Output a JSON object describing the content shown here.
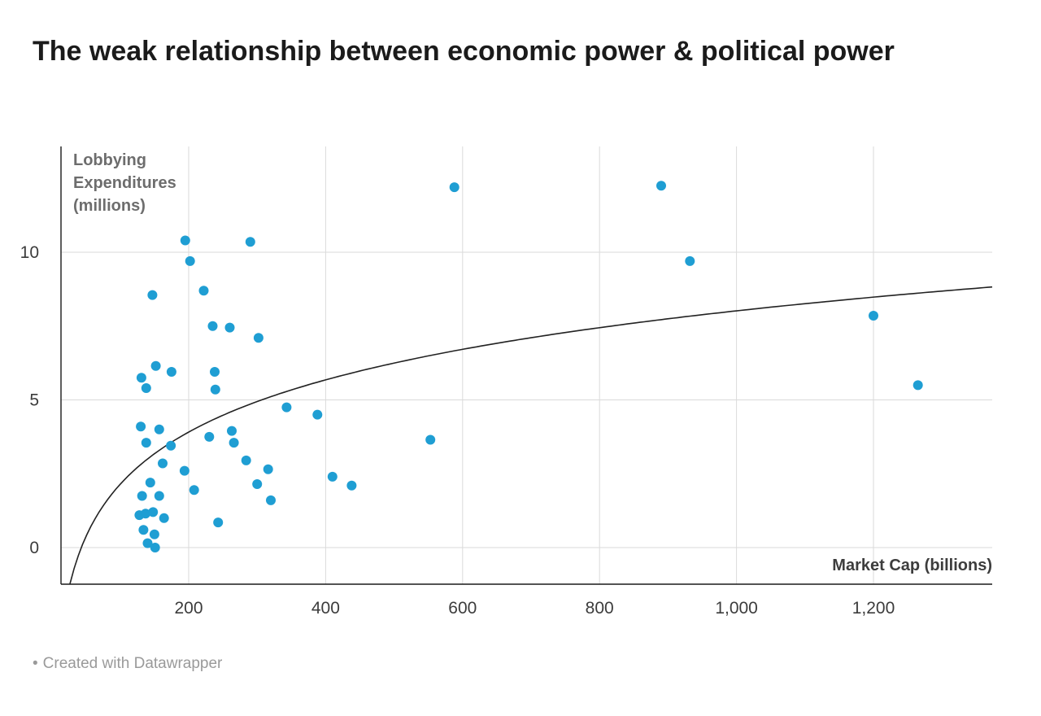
{
  "page": {
    "title": "The weak relationship between economic power & political power",
    "footer_bullet": "•",
    "footer_credit": "Created with Datawrapper"
  },
  "chart_data": {
    "type": "scatter",
    "title": "The weak relationship between economic power & political power",
    "xlabel": "Market Cap (billions)",
    "ylabel": "Lobbying Expenditures (millions)",
    "ylabel_lines": [
      "Lobbying",
      "Expenditures",
      "(millions)"
    ],
    "grid": true,
    "point_color": "#1f9ed3",
    "x_ticks": [
      {
        "value": 200,
        "label": "200"
      },
      {
        "value": 400,
        "label": "400"
      },
      {
        "value": 600,
        "label": "600"
      },
      {
        "value": 800,
        "label": "800"
      },
      {
        "value": 1000,
        "label": "1,000"
      },
      {
        "value": 1200,
        "label": "1,200"
      }
    ],
    "y_ticks": [
      {
        "value": 0,
        "label": "0"
      },
      {
        "value": 5,
        "label": "5"
      },
      {
        "value": 10,
        "label": "10"
      }
    ],
    "xlim": [
      13,
      1375
    ],
    "ylim": [
      -1.24,
      13.6
    ],
    "trend_line": {
      "type": "logarithmic",
      "equation": "y = 2.55*ln(x) - 9.6",
      "a": 2.55,
      "b": -9.6,
      "color": "#222222"
    },
    "points": [
      [
        195,
        10.4
      ],
      [
        202,
        9.7
      ],
      [
        290,
        10.35
      ],
      [
        588,
        12.2
      ],
      [
        890,
        12.25
      ],
      [
        932,
        9.7
      ],
      [
        147,
        8.55
      ],
      [
        222,
        8.7
      ],
      [
        1200,
        7.85
      ],
      [
        235,
        7.5
      ],
      [
        260,
        7.45
      ],
      [
        302,
        7.1
      ],
      [
        1265,
        5.5
      ],
      [
        152,
        6.15
      ],
      [
        131,
        5.75
      ],
      [
        175,
        5.95
      ],
      [
        238,
        5.95
      ],
      [
        138,
        5.4
      ],
      [
        239,
        5.35
      ],
      [
        343,
        4.75
      ],
      [
        388,
        4.5
      ],
      [
        130,
        4.1
      ],
      [
        157,
        4.0
      ],
      [
        263,
        3.95
      ],
      [
        230,
        3.75
      ],
      [
        266,
        3.55
      ],
      [
        138,
        3.55
      ],
      [
        553,
        3.65
      ],
      [
        174,
        3.45
      ],
      [
        284,
        2.95
      ],
      [
        162,
        2.85
      ],
      [
        316,
        2.65
      ],
      [
        194,
        2.6
      ],
      [
        410,
        2.4
      ],
      [
        144,
        2.2
      ],
      [
        300,
        2.15
      ],
      [
        438,
        2.1
      ],
      [
        208,
        1.95
      ],
      [
        132,
        1.75
      ],
      [
        157,
        1.75
      ],
      [
        320,
        1.6
      ],
      [
        128,
        1.1
      ],
      [
        137,
        1.15
      ],
      [
        148,
        1.2
      ],
      [
        164,
        1.0
      ],
      [
        243,
        0.85
      ],
      [
        134,
        0.6
      ],
      [
        150,
        0.45
      ],
      [
        140,
        0.15
      ],
      [
        151,
        0.0
      ]
    ]
  }
}
